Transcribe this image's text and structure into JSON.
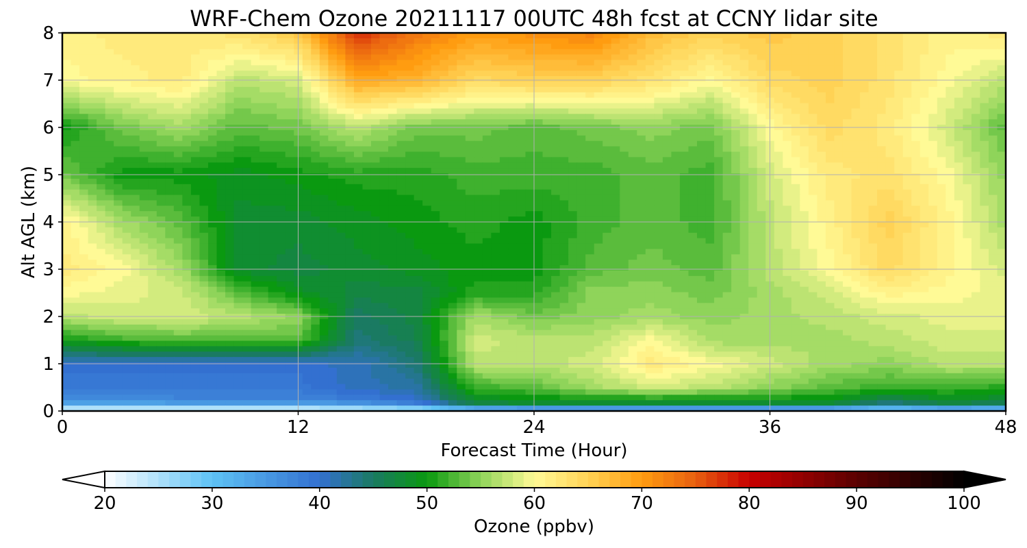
{
  "chart_data": {
    "type": "heatmap",
    "title": "WRF-Chem Ozone  20211117 00UTC 48h fcst at CCNY lidar site",
    "xlabel": "Forecast Time (Hour)",
    "ylabel": "Alt AGL (km)",
    "xlim": [
      0,
      48
    ],
    "ylim": [
      0,
      8
    ],
    "xticks": [
      0,
      12,
      24,
      36,
      48
    ],
    "yticks": [
      0,
      1,
      2,
      3,
      4,
      5,
      6,
      7,
      8
    ],
    "grid": true,
    "colorbar": {
      "label": "Ozone  (ppbv)",
      "range": [
        20,
        100
      ],
      "ticks": [
        20,
        30,
        40,
        50,
        60,
        70,
        80,
        90,
        100
      ],
      "extend": "both",
      "stops": [
        {
          "v": 20,
          "c": "#ffffff"
        },
        {
          "v": 30,
          "c": "#5ec2f5"
        },
        {
          "v": 40,
          "c": "#3370d0"
        },
        {
          "v": 45,
          "c": "#1a7a62"
        },
        {
          "v": 50,
          "c": "#0a9910"
        },
        {
          "v": 55,
          "c": "#8fd45a"
        },
        {
          "v": 60,
          "c": "#fffa96"
        },
        {
          "v": 65,
          "c": "#ffd255"
        },
        {
          "v": 70,
          "c": "#ff9c10"
        },
        {
          "v": 75,
          "c": "#e86010"
        },
        {
          "v": 80,
          "c": "#c80000"
        },
        {
          "v": 90,
          "c": "#5a0000"
        },
        {
          "v": 100,
          "c": "#000000"
        }
      ]
    },
    "x": [
      0,
      3,
      6,
      9,
      12,
      15,
      18,
      21,
      24,
      27,
      30,
      33,
      36,
      39,
      42,
      45,
      48
    ],
    "y": [
      0,
      0.1,
      0.2,
      0.5,
      1,
      1.5,
      2,
      2.5,
      3,
      4,
      5,
      6,
      7,
      8
    ],
    "z": [
      [
        20,
        20,
        20,
        20,
        20,
        20,
        20,
        20,
        20,
        20,
        20,
        20,
        20,
        20,
        20,
        20,
        20
      ],
      [
        28,
        28,
        29,
        29,
        29,
        31,
        34,
        44,
        46,
        46,
        46,
        46,
        46,
        46,
        40,
        44,
        43
      ],
      [
        36,
        36,
        37,
        37,
        37,
        38,
        40,
        48,
        49,
        49,
        49,
        49,
        49,
        49,
        45,
        48,
        47
      ],
      [
        39,
        39,
        39,
        39,
        39,
        41,
        42,
        52,
        53,
        56,
        58,
        57,
        55,
        53,
        52,
        52,
        51
      ],
      [
        40,
        40,
        40,
        40,
        40,
        41,
        44,
        57,
        57,
        58,
        62,
        60,
        58,
        56,
        55,
        57,
        57
      ],
      [
        50,
        52,
        53,
        53,
        53,
        44,
        46,
        58,
        57,
        57,
        60,
        56,
        56,
        56,
        57,
        58,
        58
      ],
      [
        57,
        58,
        58,
        57,
        55,
        45,
        47,
        56,
        54,
        55,
        56,
        55,
        56,
        57,
        58,
        59,
        59
      ],
      [
        60,
        59,
        58,
        53,
        49,
        47,
        47,
        51,
        51,
        55,
        55,
        54,
        56,
        58,
        61,
        60,
        59
      ],
      [
        62,
        60,
        56,
        48,
        47,
        48,
        49,
        50,
        50,
        53,
        54,
        53,
        57,
        60,
        64,
        61,
        58
      ],
      [
        61,
        56,
        53,
        48,
        48,
        49,
        50,
        51,
        50,
        52,
        53,
        52,
        57,
        61,
        65,
        61,
        56
      ],
      [
        54,
        50,
        50,
        49,
        50,
        51,
        51,
        52,
        52,
        52,
        53,
        52,
        58,
        62,
        63,
        60,
        55
      ],
      [
        50,
        54,
        56,
        53,
        54,
        57,
        54,
        54,
        53,
        54,
        55,
        54,
        60,
        64,
        62,
        58,
        53
      ],
      [
        60,
        61,
        62,
        57,
        58,
        69,
        68,
        64,
        65,
        65,
        63,
        60,
        64,
        65,
        63,
        60,
        57
      ],
      [
        61,
        62,
        62,
        63,
        66,
        78,
        73,
        70,
        71,
        72,
        67,
        65,
        66,
        65,
        63,
        61,
        62
      ]
    ]
  }
}
